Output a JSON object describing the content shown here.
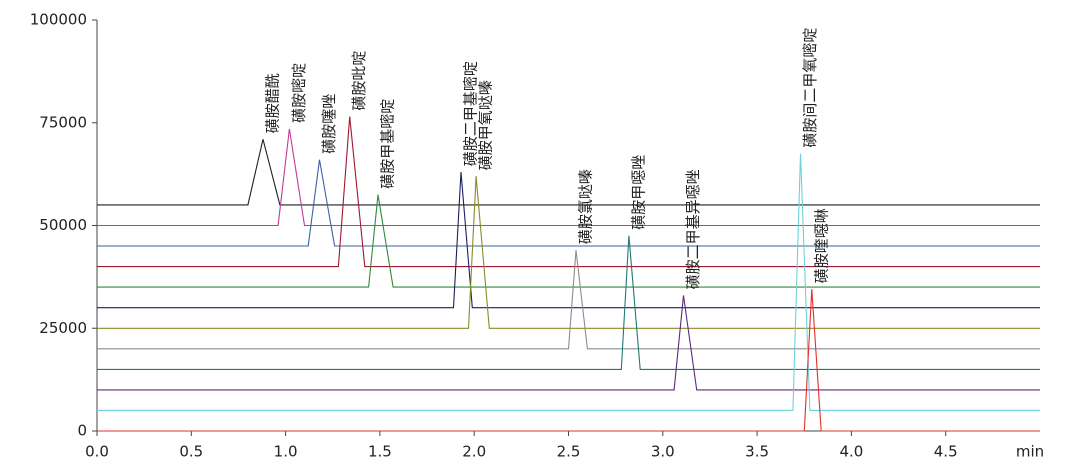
{
  "chart_data": {
    "type": "line",
    "x_unit_label": "min",
    "xlim": [
      0,
      5.0
    ],
    "xticks": [
      {
        "value": 0,
        "label": "0.0"
      },
      {
        "value": 0.5,
        "label": "0.5"
      },
      {
        "value": 1,
        "label": "1.0"
      },
      {
        "value": 1.5,
        "label": "1.5"
      },
      {
        "value": 2,
        "label": "2.0"
      },
      {
        "value": 2.5,
        "label": "2.5"
      },
      {
        "value": 3,
        "label": "3.0"
      },
      {
        "value": 3.5,
        "label": "3.5"
      },
      {
        "value": 4,
        "label": "4.0"
      },
      {
        "value": 4.5,
        "label": "4.5"
      }
    ],
    "ylim": [
      0,
      100000
    ],
    "yticks": [
      0,
      25000,
      50000,
      75000,
      100000
    ],
    "series": [
      {
        "name": "磺胺醋酰",
        "color": "#222222",
        "x": [
          0,
          0.8,
          0.88,
          0.97,
          5.0
        ],
        "values": [
          55000,
          55000,
          71000,
          55000,
          55000
        ]
      },
      {
        "name": "磺胺嘧啶",
        "color": "#c03a9a",
        "x": [
          0,
          0.96,
          1.02,
          1.1,
          5.0
        ],
        "values": [
          50000,
          50000,
          73500,
          50000,
          50000
        ]
      },
      {
        "name": "磺胺噻唑",
        "color": "#3a5fa8",
        "x": [
          0,
          1.12,
          1.18,
          1.26,
          5.0
        ],
        "values": [
          45000,
          45000,
          66000,
          45000,
          45000
        ]
      },
      {
        "name": "磺胺吡啶",
        "color": "#a01830",
        "x": [
          0,
          1.28,
          1.34,
          1.42,
          5.0
        ],
        "values": [
          40000,
          40000,
          76500,
          40000,
          40000
        ]
      },
      {
        "name": "磺胺甲基嘧啶",
        "color": "#2e8b3a",
        "x": [
          0,
          1.44,
          1.49,
          1.57,
          5.0
        ],
        "values": [
          35000,
          35000,
          57500,
          35000,
          35000
        ]
      },
      {
        "name": "磺胺二甲基嘧啶",
        "color": "#1c1f5e",
        "x": [
          0,
          1.89,
          1.93,
          1.99,
          5.0
        ],
        "values": [
          30000,
          30000,
          63000,
          30000,
          30000
        ]
      },
      {
        "name": "磺胺甲氧哒嗪",
        "color": "#8a8a2a",
        "x": [
          0,
          1.97,
          2.01,
          2.08,
          5.0
        ],
        "values": [
          25000,
          25000,
          62000,
          25000,
          25000
        ]
      },
      {
        "name": "磺胺氯哒嗪",
        "color": "#8c8c8c",
        "x": [
          0,
          2.5,
          2.54,
          2.6,
          5.0
        ],
        "values": [
          20000,
          20000,
          44000,
          20000,
          20000
        ]
      },
      {
        "name": "磺胺甲噁唑",
        "color": "#1f7a74",
        "x": [
          0,
          2.78,
          2.82,
          2.88,
          5.0
        ],
        "values": [
          15000,
          15000,
          47500,
          15000,
          15000
        ]
      },
      {
        "name": "磺胺二甲基异噁唑",
        "color": "#5a2a82",
        "x": [
          0,
          3.06,
          3.11,
          3.18,
          5.0
        ],
        "values": [
          10000,
          10000,
          33000,
          10000,
          10000
        ]
      },
      {
        "name": "磺胺间二甲氧嘧啶",
        "color": "#6fd0d8",
        "x": [
          0,
          3.69,
          3.73,
          3.78,
          5.0
        ],
        "values": [
          5000,
          5000,
          67500,
          5000,
          5000
        ]
      },
      {
        "name": "磺胺喹噁啉",
        "color": "#e0302a",
        "x": [
          0,
          3.75,
          3.79,
          3.84,
          5.0
        ],
        "values": [
          0,
          0,
          34500,
          0,
          0
        ]
      }
    ]
  }
}
